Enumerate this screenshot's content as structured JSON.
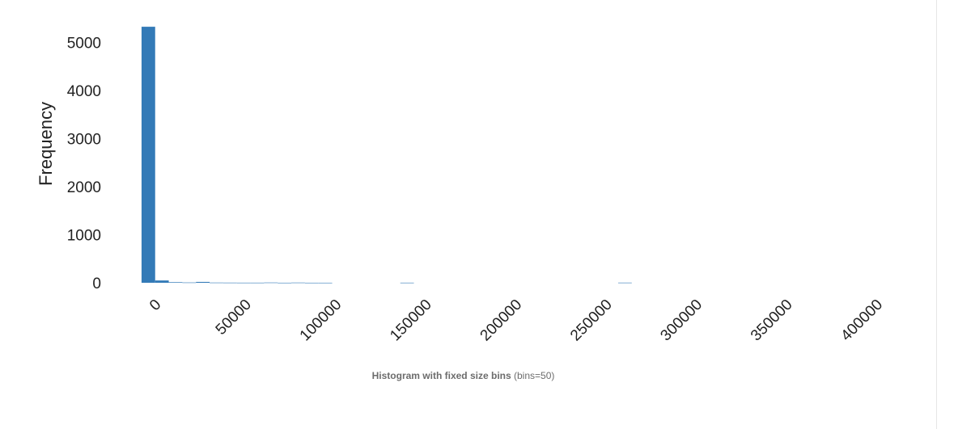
{
  "chart_data": {
    "type": "bar",
    "ylabel": "Frequency",
    "xlim": [
      -4000,
      415000
    ],
    "ylim": [
      0,
      5500
    ],
    "x_ticks": [
      0,
      50000,
      100000,
      150000,
      200000,
      250000,
      300000,
      350000,
      400000
    ],
    "x_tick_labels": [
      "0",
      "50000",
      "100000",
      "150000",
      "200000",
      "250000",
      "300000",
      "350000",
      "400000"
    ],
    "y_ticks": [
      0,
      1000,
      2000,
      3000,
      4000,
      5000
    ],
    "y_tick_labels": [
      "0",
      "1000",
      "2000",
      "3000",
      "4000",
      "5000"
    ],
    "bin_width": 7550,
    "bins": [
      {
        "x0": 0,
        "x1": 7550,
        "count": 5330
      },
      {
        "x0": 7550,
        "x1": 15100,
        "count": 48
      },
      {
        "x0": 15100,
        "x1": 22650,
        "count": 12
      },
      {
        "x0": 22650,
        "x1": 30200,
        "count": 6
      },
      {
        "x0": 30200,
        "x1": 37750,
        "count": 18
      },
      {
        "x0": 37750,
        "x1": 45300,
        "count": 4
      },
      {
        "x0": 45300,
        "x1": 52850,
        "count": 3
      },
      {
        "x0": 52850,
        "x1": 60400,
        "count": 2
      },
      {
        "x0": 60400,
        "x1": 67950,
        "count": 2
      },
      {
        "x0": 67950,
        "x1": 75500,
        "count": 5
      },
      {
        "x0": 75500,
        "x1": 83050,
        "count": 1
      },
      {
        "x0": 83050,
        "x1": 90600,
        "count": 4
      },
      {
        "x0": 90600,
        "x1": 98150,
        "count": 1
      },
      {
        "x0": 98150,
        "x1": 105700,
        "count": 1
      },
      {
        "x0": 143450,
        "x1": 151000,
        "count": 2
      },
      {
        "x0": 264250,
        "x1": 271800,
        "count": 3
      }
    ],
    "bar_color": "#337ab7",
    "grid": false,
    "legend": "none"
  },
  "caption": {
    "title": "Histogram with fixed size bins",
    "detail": "(bins=50)"
  }
}
